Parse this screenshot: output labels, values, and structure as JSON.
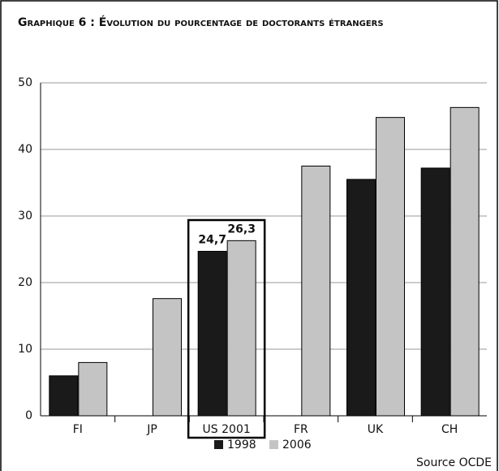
{
  "chart_data": {
    "type": "bar",
    "title": "Graphique 6 : Évolution du pourcentage de doctorants étrangers",
    "categories": [
      "FI",
      "JP",
      "US 2001",
      "FR",
      "UK",
      "CH"
    ],
    "series": [
      {
        "name": "1998",
        "color": "#1a1a1a",
        "values": [
          6,
          null,
          24.7,
          null,
          35.5,
          37.2
        ],
        "value_labels": [
          null,
          null,
          "24,7",
          null,
          null,
          null
        ]
      },
      {
        "name": "2006",
        "color": "#c4c4c4",
        "values": [
          8,
          17.6,
          26.3,
          37.5,
          44.8,
          46.3
        ],
        "value_labels": [
          null,
          null,
          "26,3",
          null,
          null,
          null
        ]
      }
    ],
    "ylim": [
      0,
      50
    ],
    "yticks": [
      0,
      10,
      20,
      30,
      40,
      50
    ],
    "grid": true,
    "source": "Source OCDE"
  }
}
